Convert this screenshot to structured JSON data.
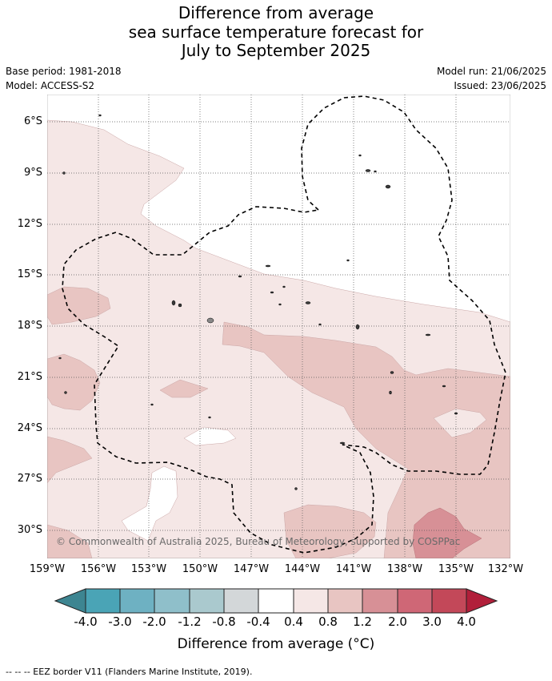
{
  "header": {
    "title_line1": "Difference from average",
    "title_line2": "sea surface temperature forecast for",
    "title_line3": "July to September 2025"
  },
  "meta": {
    "base_period": "Base period: 1981-2018",
    "model": "Model: ACCESS-S2",
    "model_run": "Model run: 21/06/2025",
    "issued": "Issued: 23/06/2025"
  },
  "map": {
    "copyright": "© Commonwealth of Australia 2025, Bureau of Meteorology, supported by COSPPac",
    "lat_labels": [
      "6°S",
      "9°S",
      "12°S",
      "15°S",
      "18°S",
      "21°S",
      "24°S",
      "27°S",
      "30°S"
    ],
    "lon_labels": [
      "159°W",
      "156°W",
      "153°W",
      "150°W",
      "147°W",
      "144°W",
      "141°W",
      "138°W",
      "135°W",
      "132°W"
    ],
    "colors": {
      "neutral": "#ffffff",
      "anom_0_4_0_8": "#f5e7e6",
      "anom_0_8_1_2": "#e8c5c2",
      "anom_1_2_2_0": "#d79096"
    }
  },
  "colorbar": {
    "title": "Difference from average (°C)",
    "ticks": [
      "-4.0",
      "-3.0",
      "-2.0",
      "-1.2",
      "-0.8",
      "-0.4",
      "0.4",
      "0.8",
      "1.2",
      "2.0",
      "3.0",
      "4.0"
    ],
    "colors": [
      "#3d8591",
      "#4aa4b6",
      "#6eb1c2",
      "#8fbfca",
      "#aac9ce",
      "#d3d7d9",
      "#ffffff",
      "#f5e7e6",
      "#e8c5c2",
      "#d79096",
      "#cf6776",
      "#c34859",
      "#b11f3a"
    ]
  },
  "legend": {
    "text": "--  --  -- EEZ border V11 (Flanders Marine Institute, 2019)."
  }
}
